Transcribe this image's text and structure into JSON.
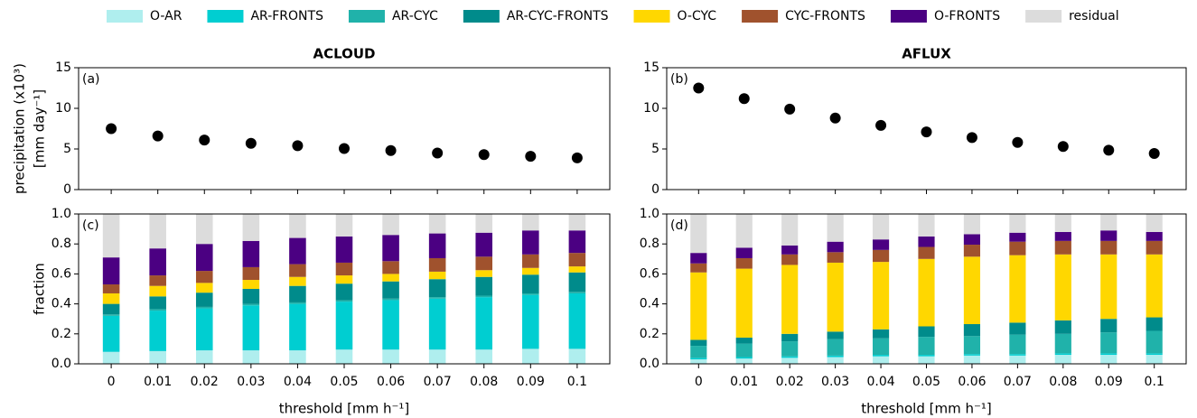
{
  "chart_data": [
    {
      "type": "scatter",
      "title": "ACLOUD",
      "panel_label": "(a)",
      "ylabel": [
        "precipitation (x10³)",
        "[mm day⁻¹]"
      ],
      "x": [
        0,
        0.01,
        0.02,
        0.03,
        0.04,
        0.05,
        0.06,
        0.07,
        0.08,
        0.09,
        0.1
      ],
      "y": [
        7.5,
        6.6,
        6.1,
        5.7,
        5.4,
        5.05,
        4.8,
        4.5,
        4.3,
        4.1,
        3.9
      ],
      "color": "#000000",
      "xlim": [
        -0.007,
        0.107
      ],
      "xticks": [
        0,
        0.01,
        0.02,
        0.03,
        0.04,
        0.05,
        0.06,
        0.07,
        0.08,
        0.09,
        0.1
      ],
      "ylim": [
        0,
        15
      ],
      "yticks": [
        0,
        5,
        10,
        15
      ]
    },
    {
      "type": "scatter",
      "title": "AFLUX",
      "panel_label": "(b)",
      "x": [
        0,
        0.01,
        0.02,
        0.03,
        0.04,
        0.05,
        0.06,
        0.07,
        0.08,
        0.09,
        0.1
      ],
      "y": [
        12.5,
        11.2,
        9.9,
        8.8,
        7.9,
        7.1,
        6.4,
        5.8,
        5.3,
        4.85,
        4.45
      ],
      "color": "#000000",
      "xlim": [
        -0.007,
        0.107
      ],
      "xticks": [
        0,
        0.01,
        0.02,
        0.03,
        0.04,
        0.05,
        0.06,
        0.07,
        0.08,
        0.09,
        0.1
      ],
      "ylim": [
        0,
        15
      ],
      "yticks": [
        0,
        5,
        10,
        15
      ]
    },
    {
      "type": "bar",
      "stacked": true,
      "panel_label": "(c)",
      "ylabel": "fraction",
      "xlabel": "threshold [mm h⁻¹]",
      "legend": "top",
      "x": [
        0,
        0.01,
        0.02,
        0.03,
        0.04,
        0.05,
        0.06,
        0.07,
        0.08,
        0.09,
        0.1
      ],
      "xlim": [
        -0.007,
        0.107
      ],
      "xticks": [
        0,
        0.01,
        0.02,
        0.03,
        0.04,
        0.05,
        0.06,
        0.07,
        0.08,
        0.09,
        0.1
      ],
      "ylim": [
        0,
        1
      ],
      "yticks": [
        {
          "value": 0,
          "label": "0.0"
        },
        0.2,
        0.4,
        0.6,
        0.8,
        {
          "value": 1,
          "label": "1.0"
        }
      ],
      "series": [
        {
          "name": "O-AR",
          "color": "#afeeee",
          "values": [
            0.08,
            0.085,
            0.09,
            0.09,
            0.09,
            0.095,
            0.095,
            0.095,
            0.095,
            0.1,
            0.1
          ]
        },
        {
          "name": "AR-FRONTS",
          "color": "#00ced1",
          "values": [
            0.24,
            0.27,
            0.28,
            0.3,
            0.31,
            0.32,
            0.33,
            0.34,
            0.35,
            0.36,
            0.37
          ]
        },
        {
          "name": "AR-CYC",
          "color": "#20b2aa",
          "values": [
            0.01,
            0.01,
            0.01,
            0.01,
            0.01,
            0.01,
            0.01,
            0.01,
            0.01,
            0.01,
            0.01
          ]
        },
        {
          "name": "AR-CYC-FRONTS",
          "color": "#008b8b",
          "values": [
            0.07,
            0.085,
            0.095,
            0.1,
            0.11,
            0.11,
            0.115,
            0.12,
            0.125,
            0.125,
            0.13
          ]
        },
        {
          "name": "O-CYC",
          "color": "#ffd700",
          "values": [
            0.07,
            0.07,
            0.065,
            0.06,
            0.06,
            0.055,
            0.05,
            0.05,
            0.045,
            0.045,
            0.04
          ]
        },
        {
          "name": "CYC-FRONTS",
          "color": "#a0522d",
          "values": [
            0.06,
            0.07,
            0.08,
            0.085,
            0.085,
            0.085,
            0.085,
            0.09,
            0.09,
            0.09,
            0.09
          ]
        },
        {
          "name": "O-FRONTS",
          "color": "#4b0082",
          "values": [
            0.18,
            0.18,
            0.18,
            0.175,
            0.175,
            0.175,
            0.175,
            0.165,
            0.16,
            0.16,
            0.15
          ]
        },
        {
          "name": "residual",
          "color": "#dcdcdc",
          "values": [
            0.29,
            0.23,
            0.2,
            0.18,
            0.16,
            0.15,
            0.14,
            0.13,
            0.125,
            0.11,
            0.11
          ]
        }
      ]
    },
    {
      "type": "bar",
      "stacked": true,
      "panel_label": "(d)",
      "xlabel": "threshold [mm h⁻¹]",
      "x": [
        0,
        0.01,
        0.02,
        0.03,
        0.04,
        0.05,
        0.06,
        0.07,
        0.08,
        0.09,
        0.1
      ],
      "xlim": [
        -0.007,
        0.107
      ],
      "xticks": [
        0,
        0.01,
        0.02,
        0.03,
        0.04,
        0.05,
        0.06,
        0.07,
        0.08,
        0.09,
        0.1
      ],
      "ylim": [
        0,
        1
      ],
      "yticks": [
        {
          "value": 0,
          "label": "0.0"
        },
        0.2,
        0.4,
        0.6,
        0.8,
        {
          "value": 1,
          "label": "1.0"
        }
      ],
      "series": [
        {
          "color": "#afeeee",
          "values": [
            0.03,
            0.035,
            0.04,
            0.045,
            0.05,
            0.05,
            0.055,
            0.055,
            0.06,
            0.06,
            0.06
          ]
        },
        {
          "color": "#00ced1",
          "values": [
            0.01,
            0.01,
            0.01,
            0.01,
            0.01,
            0.01,
            0.01,
            0.01,
            0.01,
            0.01,
            0.01
          ]
        },
        {
          "color": "#20b2aa",
          "values": [
            0.08,
            0.09,
            0.1,
            0.11,
            0.11,
            0.12,
            0.12,
            0.13,
            0.13,
            0.14,
            0.15
          ]
        },
        {
          "color": "#008b8b",
          "values": [
            0.04,
            0.04,
            0.05,
            0.05,
            0.06,
            0.07,
            0.08,
            0.08,
            0.09,
            0.09,
            0.09
          ]
        },
        {
          "color": "#ffd700",
          "values": [
            0.45,
            0.46,
            0.46,
            0.46,
            0.45,
            0.45,
            0.45,
            0.45,
            0.44,
            0.43,
            0.42
          ]
        },
        {
          "color": "#a0522d",
          "values": [
            0.06,
            0.07,
            0.07,
            0.07,
            0.08,
            0.08,
            0.08,
            0.09,
            0.09,
            0.09,
            0.09
          ]
        },
        {
          "color": "#4b0082",
          "values": [
            0.07,
            0.07,
            0.06,
            0.07,
            0.07,
            0.07,
            0.07,
            0.06,
            0.06,
            0.07,
            0.06
          ]
        },
        {
          "color": "#dcdcdc",
          "values": [
            0.26,
            0.225,
            0.21,
            0.185,
            0.17,
            0.15,
            0.135,
            0.125,
            0.12,
            0.11,
            0.12
          ]
        }
      ]
    }
  ]
}
